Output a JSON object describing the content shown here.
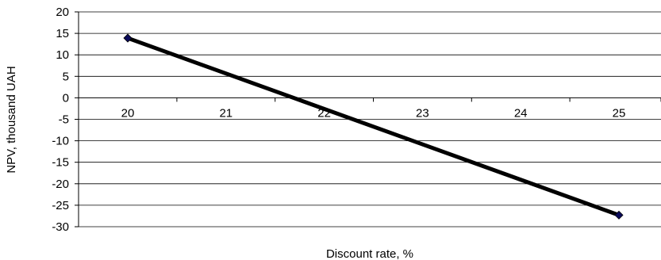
{
  "chart_data": {
    "type": "line",
    "title": "",
    "xlabel": "Discount rate, %",
    "ylabel": "NPV, thousand UAH",
    "categories": [
      "20",
      "21",
      "22",
      "23",
      "24",
      "25"
    ],
    "x": [
      20,
      25
    ],
    "y": [
      13.9,
      -27.3
    ],
    "ylim": [
      -30,
      20
    ],
    "y_ticks": [
      "20",
      "15",
      "10",
      "5",
      "0",
      "-5",
      "-10",
      "-15",
      "-20",
      "-25",
      "-30"
    ],
    "grid": true,
    "legend": "none",
    "colors": {
      "line": "#000000",
      "marker": "#0a0a5a",
      "grid": "#000000"
    }
  }
}
